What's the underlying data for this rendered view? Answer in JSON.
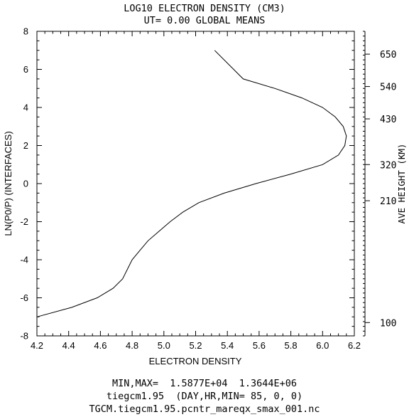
{
  "header": {
    "title": "LOG10 ELECTRON DENSITY (CM3)",
    "subtitle": "UT= 0.00 GLOBAL MEANS"
  },
  "footer": {
    "line1": "MIN,MAX=  1.5877E+04  1.3644E+06",
    "line2": "tiegcm1.95  (DAY,HR,MIN= 85, 0, 0)",
    "line3": "TGCM.tiegcm1.95.pcntr_mareqx_smax_001.nc"
  },
  "chart_data": {
    "type": "line",
    "title": "LOG10 ELECTRON DENSITY (CM3)",
    "subtitle": "UT= 0.00 GLOBAL MEANS",
    "xlabel": "ELECTRON DENSITY",
    "ylabel": "LN(P0/P) (INTERFACES)",
    "y2label": "AVE HEIGHT (KM)",
    "xlim": [
      4.2,
      6.2
    ],
    "ylim": [
      -8,
      8
    ],
    "xticks": [
      "4.2",
      "4.4",
      "4.6",
      "4.8",
      "5.0",
      "5.2",
      "5.4",
      "5.6",
      "5.8",
      "6.0",
      "6.2"
    ],
    "yticks": [
      "-8",
      "-6",
      "-4",
      "-2",
      "0",
      "2",
      "4",
      "6",
      "8"
    ],
    "right_axis": {
      "label": "AVE HEIGHT (KM)",
      "ticks": [
        {
          "label": "650",
          "zp": 6.8
        },
        {
          "label": "540",
          "zp": 5.1
        },
        {
          "label": "430",
          "zp": 3.4
        },
        {
          "label": "320",
          "zp": 1.0
        },
        {
          "label": "210",
          "zp": -0.9
        },
        {
          "label": "100",
          "zp": -7.3
        }
      ]
    },
    "grid": false,
    "series": [
      {
        "x": [
          4.2,
          4.42,
          4.58,
          4.68,
          4.74,
          4.77,
          4.8,
          4.85,
          4.9,
          4.97,
          5.04,
          5.12,
          5.22,
          5.38,
          5.58,
          5.8,
          6.0,
          6.1,
          6.14,
          6.15,
          6.13,
          6.08,
          6.0,
          5.87,
          5.7,
          5.5,
          5.32
        ],
        "y": [
          -7.0,
          -6.5,
          -6.0,
          -5.5,
          -5.0,
          -4.5,
          -4.0,
          -3.5,
          -3.0,
          -2.5,
          -2.0,
          -1.5,
          -1.0,
          -0.5,
          0.0,
          0.5,
          1.0,
          1.5,
          2.0,
          2.5,
          3.0,
          3.5,
          4.0,
          4.5,
          5.0,
          5.5,
          7.0
        ]
      }
    ],
    "stats": {
      "min": "1.5877E+04",
      "max": "1.3644E+06"
    }
  }
}
